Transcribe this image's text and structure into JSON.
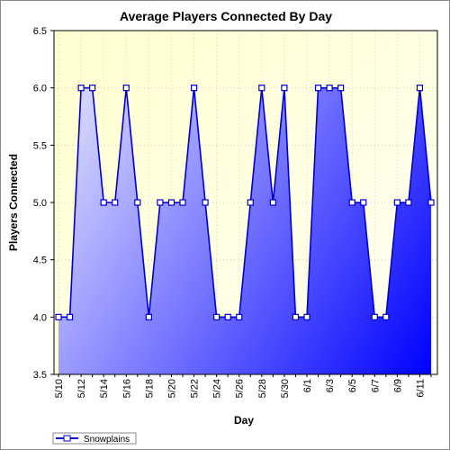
{
  "chart_data": {
    "type": "area",
    "title": "Average Players Connected By Day",
    "xlabel": "Day",
    "ylabel": "Players Connected",
    "ylim": [
      3.5,
      6.5
    ],
    "yticks": [
      "3.5",
      "4.0",
      "4.5",
      "5.0",
      "5.5",
      "6.0",
      "6.5"
    ],
    "grid": true,
    "legend": "bottom-left",
    "categories": [
      "5/10",
      "5/11",
      "5/12",
      "5/13",
      "5/14",
      "5/15",
      "5/16",
      "5/17",
      "5/18",
      "5/19",
      "5/20",
      "5/21",
      "5/22",
      "5/23",
      "5/24",
      "5/25",
      "5/26",
      "5/27",
      "5/28",
      "5/29",
      "5/30",
      "5/31",
      "6/1",
      "6/2",
      "6/3",
      "6/4",
      "6/5",
      "6/6",
      "6/7",
      "6/8",
      "6/9",
      "6/10",
      "6/11",
      "6/12"
    ],
    "tick_labels": [
      "5/10",
      "5/12",
      "5/14",
      "5/16",
      "5/18",
      "5/20",
      "5/22",
      "5/24",
      "5/26",
      "5/28",
      "5/30",
      "6/1",
      "6/3",
      "6/5",
      "6/7",
      "6/9",
      "6/11"
    ],
    "series": [
      {
        "name": "Snowplains",
        "values": [
          4.0,
          4.0,
          6.0,
          6.0,
          5.0,
          5.0,
          6.0,
          5.0,
          4.0,
          5.0,
          5.0,
          5.0,
          6.0,
          5.0,
          4.0,
          4.0,
          4.0,
          5.0,
          6.0,
          5.0,
          6.0,
          4.0,
          4.0,
          6.0,
          6.0,
          6.0,
          5.0,
          5.0,
          4.0,
          4.0,
          5.0,
          5.0,
          6.0,
          5.0
        ]
      }
    ],
    "colors": {
      "line": "#0000cc",
      "fill_light": "#c8c8ff",
      "fill_dark": "#0000ff",
      "plot_bg": "#ffffd8",
      "marker_fill": "#ffffff"
    }
  }
}
